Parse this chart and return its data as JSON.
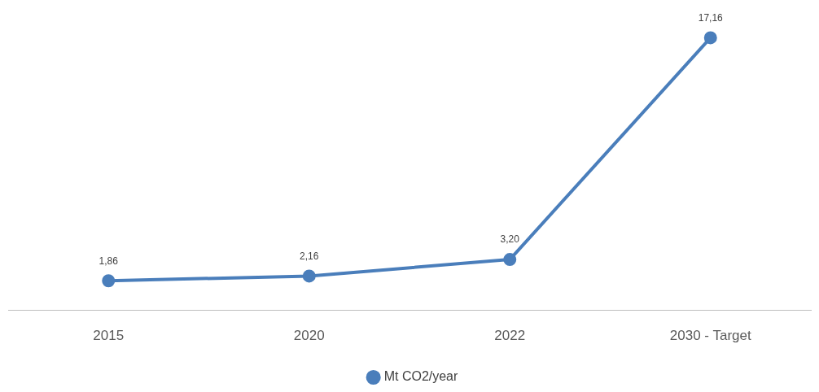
{
  "chart_data": {
    "type": "line",
    "categories": [
      "2015",
      "2020",
      "2022",
      "2030 - Target"
    ],
    "series": [
      {
        "name": "Mt CO2/year",
        "color": "#4a7ebb",
        "values": [
          1.86,
          2.16,
          3.2,
          17.16
        ],
        "value_labels": [
          "1,86",
          "2,16",
          "3,20",
          "17,16"
        ]
      }
    ],
    "tick_labels": "x",
    "grid": false,
    "legend": "bottom",
    "marker": "circle",
    "line_style": "solid"
  }
}
